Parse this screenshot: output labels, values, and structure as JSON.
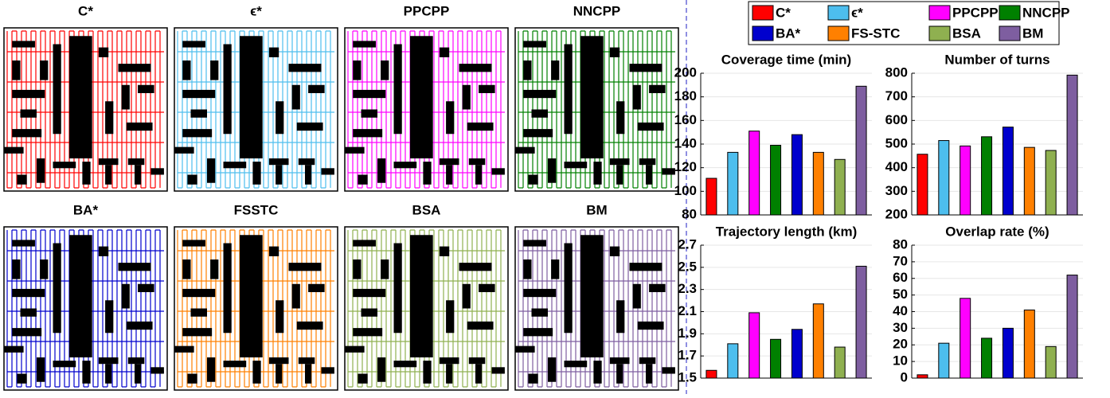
{
  "maze_panels": {
    "titles": [
      "C*",
      "ϵ*",
      "PPCPP",
      "NNCPP",
      "BA*",
      "FSSTC",
      "BSA",
      "BM"
    ]
  },
  "legend": {
    "names": [
      "C*",
      "ϵ*",
      "PPCPP",
      "NNCPP",
      "BA*",
      "FS-STC",
      "BSA",
      "BM"
    ],
    "colors": [
      "#ff0000",
      "#4dbeee",
      "#ff00ff",
      "#008000",
      "#0000cd",
      "#ff8000",
      "#8fb050",
      "#7e5ea0"
    ]
  },
  "chart_data": [
    {
      "type": "bar",
      "title": "Coverage time (min)",
      "values": [
        111,
        133,
        151,
        139,
        148,
        133,
        127,
        189
      ],
      "ylim": [
        80,
        200
      ],
      "yticks": [
        80,
        100,
        120,
        140,
        160,
        180,
        200
      ],
      "grid": true
    },
    {
      "type": "bar",
      "title": "Number of turns",
      "values": [
        457,
        515,
        492,
        531,
        572,
        486,
        473,
        792
      ],
      "ylim": [
        200,
        800
      ],
      "yticks": [
        200,
        300,
        400,
        500,
        600,
        700,
        800
      ],
      "grid": true
    },
    {
      "type": "bar",
      "title": "Trajectory length (km)",
      "values": [
        1.57,
        1.81,
        2.09,
        1.85,
        1.94,
        2.17,
        1.78,
        2.51
      ],
      "ylim": [
        1.5,
        2.7
      ],
      "yticks": [
        1.5,
        1.7,
        1.9,
        2.1,
        2.3,
        2.5,
        2.7
      ],
      "grid": true
    },
    {
      "type": "bar",
      "title": "Overlap rate (%)",
      "values": [
        2,
        21,
        48,
        24,
        30,
        41,
        19,
        62
      ],
      "ylim": [
        0,
        80
      ],
      "yticks": [
        0,
        10,
        20,
        30,
        40,
        50,
        60,
        70,
        80
      ],
      "grid": true
    }
  ]
}
